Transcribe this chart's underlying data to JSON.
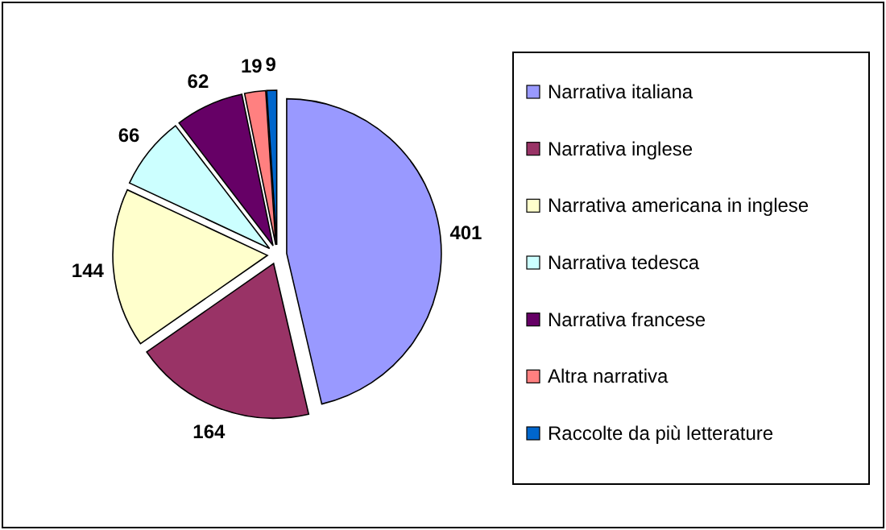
{
  "chart_data": {
    "type": "pie",
    "categories": [
      "Narrativa italiana",
      "Narrativa inglese",
      "Narrativa americana in inglese",
      "Narrativa tedesca",
      "Narrativa francese",
      "Altra narrativa",
      "Raccolte da più letterature"
    ],
    "values": [
      401,
      164,
      144,
      66,
      62,
      19,
      9
    ],
    "colors": [
      "#9999ff",
      "#993366",
      "#ffffcc",
      "#ccffff",
      "#660066",
      "#ff8080",
      "#0066cc"
    ],
    "data_labels": true,
    "legend": "right"
  }
}
